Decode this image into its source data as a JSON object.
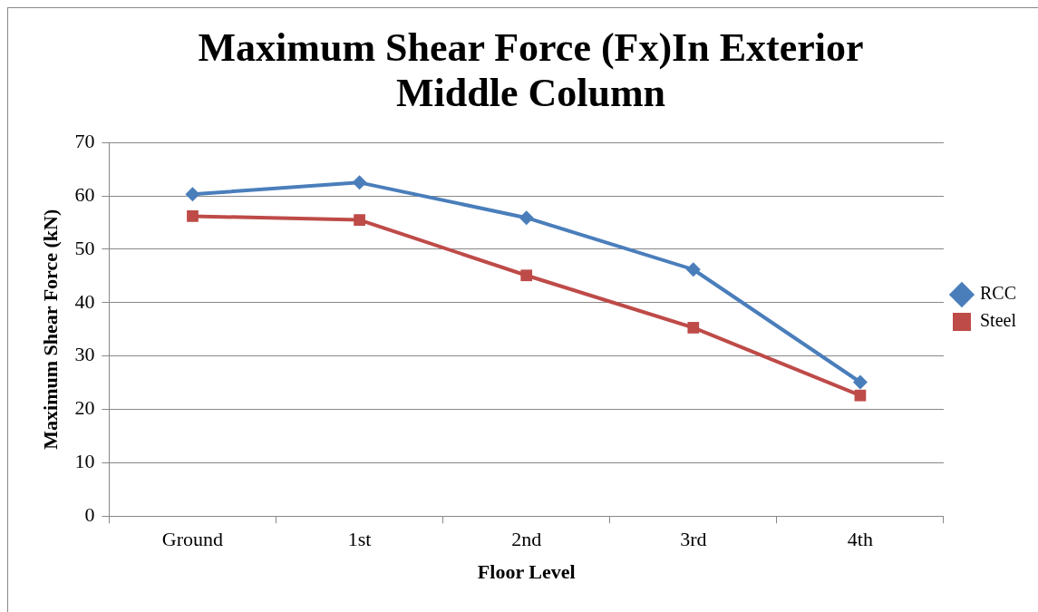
{
  "chart_data": {
    "type": "line",
    "title": "Maximum Shear Force (Fx)In Exterior Middle Column",
    "xlabel": "Floor Level",
    "ylabel": "Maximum Shear Force (kN)",
    "categories": [
      "Ground",
      "1st",
      "2nd",
      "3rd",
      "4th"
    ],
    "series": [
      {
        "name": "RCC",
        "color": "#4a7ebb",
        "marker": "diamond",
        "values": [
          60.3,
          62.5,
          55.9,
          46.2,
          25.1
        ]
      },
      {
        "name": "Steel",
        "color": "#be4b48",
        "marker": "square",
        "values": [
          56.2,
          55.5,
          45.1,
          35.3,
          22.6
        ]
      }
    ],
    "ylim": [
      0,
      70
    ],
    "yticks": [
      0,
      10,
      20,
      30,
      40,
      50,
      60,
      70
    ],
    "grid": "y",
    "legend": "right",
    "line_style": "solid"
  }
}
